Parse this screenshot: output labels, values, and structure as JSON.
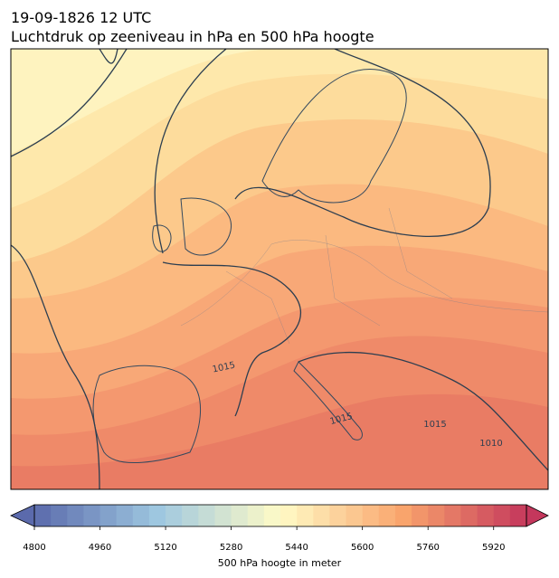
{
  "title": [
    "19-09-1826 12 UTC",
    "Luchtdruk op zeeniveau in hPa en 500 hPa hoogte"
  ],
  "map": {
    "isobar_labels": [
      1015,
      1015,
      1015,
      1010
    ]
  },
  "colorbar": {
    "label": "500 hPa hoogte in meter",
    "clim": [
      4800,
      6000
    ],
    "ticks": [
      4800,
      4960,
      5120,
      5280,
      5440,
      5600,
      5760,
      5920
    ],
    "band_width": 40,
    "extend": "both",
    "colormap": [
      "#5b6aac",
      "#9ec7e0",
      "#fffbc6",
      "#f9a46c",
      "#c4375c"
    ]
  }
}
